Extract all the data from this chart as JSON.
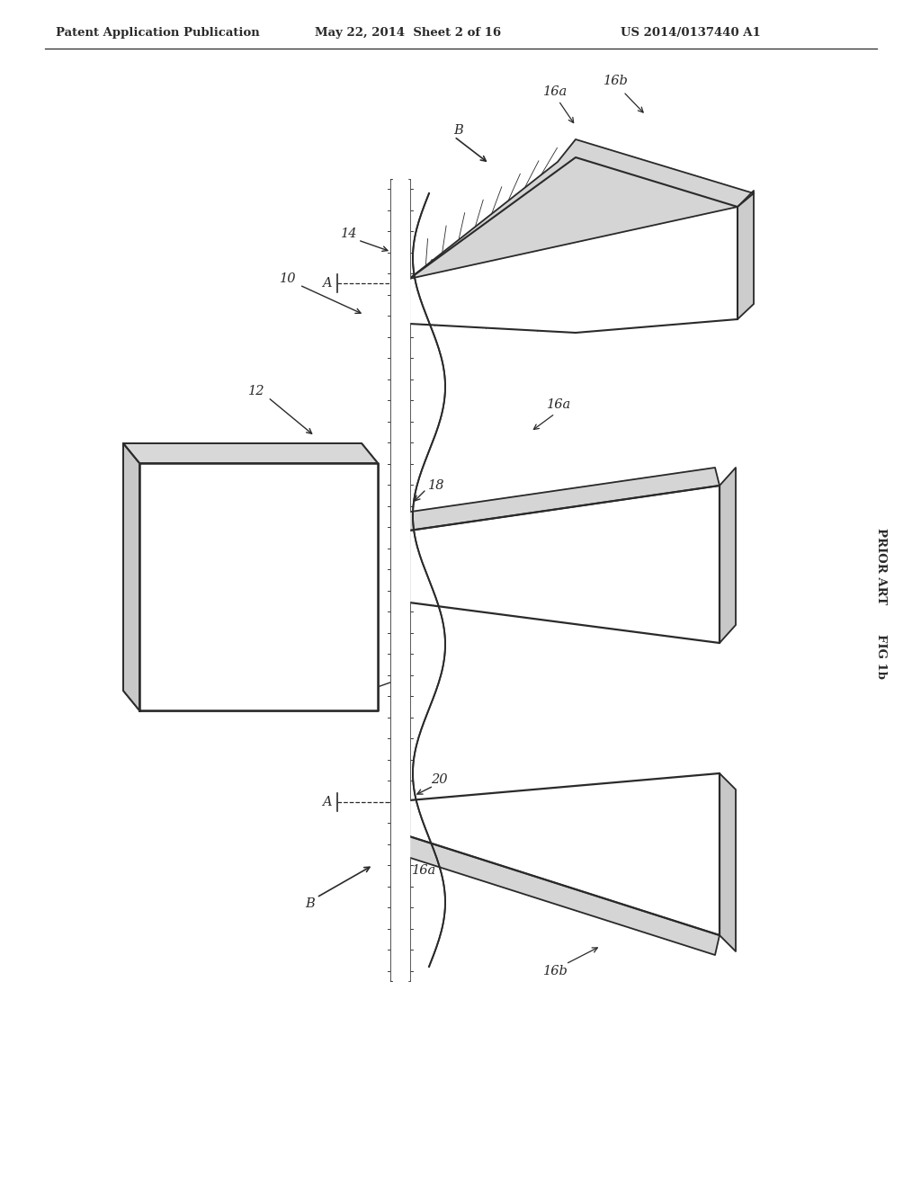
{
  "header_left": "Patent Application Publication",
  "header_mid": "May 22, 2014  Sheet 2 of 16",
  "header_right": "US 2014/0137440 A1",
  "fig_label": "FIG 1b",
  "prior_art_label": "PRIOR ART",
  "bg_color": "#ffffff",
  "line_color": "#2a2a2a",
  "text_color": "#2a2a2a"
}
